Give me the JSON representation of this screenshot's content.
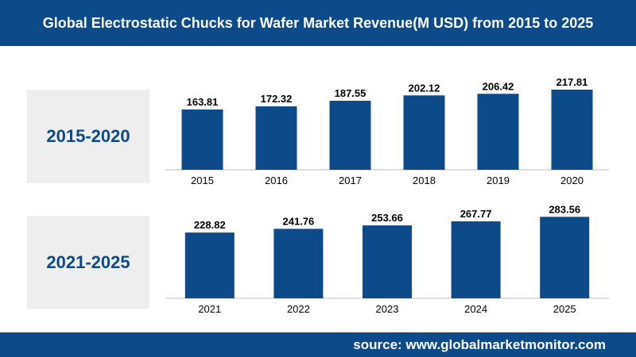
{
  "header": {
    "title": "Global Electrostatic Chucks for Wafer Market Revenue(M USD) from 2015 to 2025"
  },
  "periods": [
    {
      "label": "2015-2020"
    },
    {
      "label": "2021-2025"
    }
  ],
  "footer": {
    "source": "source: www.globalmarketmonitor.com"
  },
  "colors": {
    "brand": "#0d4a8a",
    "bar": "#0d4a8a",
    "panel": "#eeeeee"
  },
  "chart_data": [
    {
      "type": "bar",
      "categories": [
        "2015",
        "2016",
        "2017",
        "2018",
        "2019",
        "2020"
      ],
      "values": [
        163.81,
        172.32,
        187.55,
        202.12,
        206.42,
        217.81
      ],
      "value_labels": [
        "163.81",
        "172.32",
        "187.55",
        "202.12",
        "206.42",
        "217.81"
      ],
      "grid": false
    },
    {
      "type": "bar",
      "categories": [
        "2021",
        "2022",
        "2023",
        "2024",
        "2025"
      ],
      "values": [
        228.82,
        241.76,
        253.66,
        267.77,
        283.56
      ],
      "value_labels": [
        "228.82",
        "241.76",
        "253.66",
        "267.77",
        "283.56"
      ],
      "grid": false
    }
  ]
}
